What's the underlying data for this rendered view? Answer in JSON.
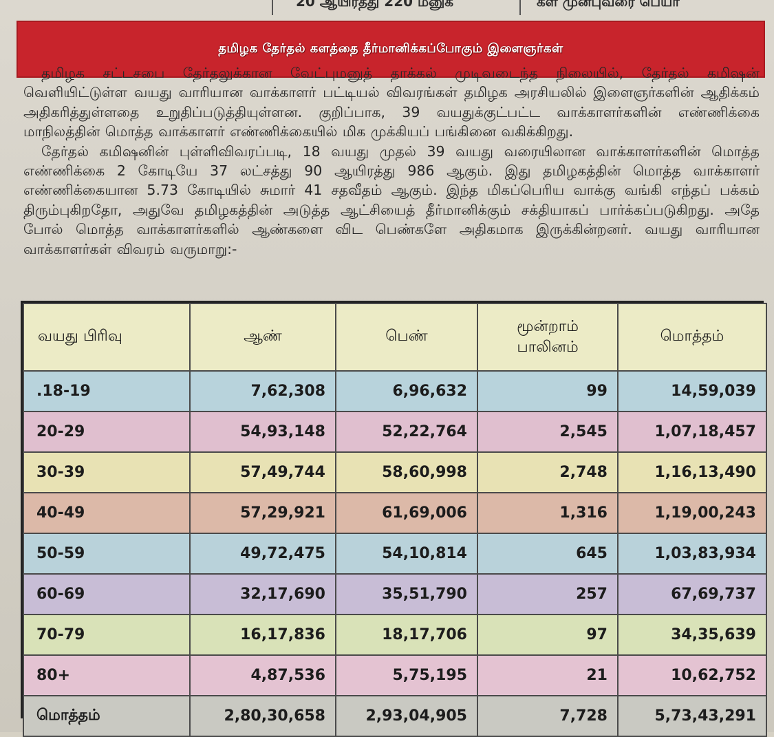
{
  "top_strip": {
    "left_fragment": "",
    "middle_fragment": "20 ஆயிரத்து 220 மனுக்",
    "right_fragment": "கள் முன்புவரை பெயர்"
  },
  "headline": "தமிழக தேர்தல் களத்தை தீர்மானிக்கப்போகும் இளைஞர்கள்",
  "paragraphs": [
    "தமிழக சட்டசபை தேர்தலுக்கான வேட்புமனுத் தாக்கல் முடிவடைந்த நிலையில், தேர்தல் கமிஷன் வெளியிட்டுள்ள வயது வாரியான வாக்காளர் பட்டியல் விவரங்கள் தமிழக அரசியலில் இளைஞர்களின் ஆதிக்கம் அதிகரித்துள்ளதை உறுதிப்படுத்தியுள்ளன. குறிப்பாக, 39 வயதுக்குட்பட்ட வாக்காளர்களின் எண்ணிக்கை மாநிலத்தின் மொத்த வாக்காளர் எண்ணிக்கையில் மிக முக்கியப் பங்கினை வகிக்கிறது.",
    "தேர்தல் கமிஷனின் புள்ளிவிவரப்படி, 18 வயது முதல் 39 வயது வரையிலான வாக்காளர்களின் மொத்த எண்ணிக்கை 2 கோடியே 37 லட்சத்து 90 ஆயிரத்து 986 ஆகும். இது தமிழகத்தின் மொத்த வாக்காளர் எண்ணிக்கையான 5.73 கோடியில் சுமார் 41 சதவீதம் ஆகும். இந்த மிகப்பெரிய வாக்கு வங்கி எந்தப் பக்கம் திரும்புகிறதோ, அதுவே தமிழகத்தின் அடுத்த ஆட்சியைத் தீர்மானிக்கும் சக்தியாகப் பார்க்கப்படுகிறது. அதே போல் மொத்த வாக்காளர்களில் ஆண்களை விட பெண்களே அதிகமாக இருக்கின்றனர். வயது வாரியான வாக்காளர்கள் விவரம் வருமாறு:-"
  ],
  "table": {
    "headers": {
      "age_group": "வயது பிரிவு",
      "male": "ஆண்",
      "female": "பெண்",
      "third_gender_line1": "மூன்றாம்",
      "third_gender_line2": "பாலினம்",
      "total": "மொத்தம்"
    },
    "rows": [
      {
        "age": ".18-19",
        "male": "7,62,308",
        "female": "6,96,632",
        "third": "99",
        "total": "14,59,039",
        "color": "#b8d3dc"
      },
      {
        "age": "20-29",
        "male": "54,93,148",
        "female": "52,22,764",
        "third": "2,545",
        "total": "1,07,18,457",
        "color": "#e0bfcf"
      },
      {
        "age": "30-39",
        "male": "57,49,744",
        "female": "58,60,998",
        "third": "2,748",
        "total": "1,16,13,490",
        "color": "#e8e2b4"
      },
      {
        "age": "40-49",
        "male": "57,29,921",
        "female": "61,69,006",
        "third": "1,316",
        "total": "1,19,00,243",
        "color": "#dcb9a8"
      },
      {
        "age": "50-59",
        "male": "49,72,475",
        "female": "54,10,814",
        "third": "645",
        "total": "1,03,83,934",
        "color": "#b9d2da"
      },
      {
        "age": "60-69",
        "male": "32,17,690",
        "female": "35,51,790",
        "third": "257",
        "total": "67,69,737",
        "color": "#c8bdd6"
      },
      {
        "age": "70-79",
        "male": "16,17,836",
        "female": "18,17,706",
        "third": "97",
        "total": "34,35,639",
        "color": "#d9e2b8"
      },
      {
        "age": "80+",
        "male": "4,87,536",
        "female": "5,75,195",
        "third": "21",
        "total": "10,62,752",
        "color": "#e4c3d2"
      },
      {
        "age": "மொத்தம்",
        "male": "2,80,30,658",
        "female": "2,93,04,905",
        "third": "7,728",
        "total": "5,73,43,291",
        "color": "#c9c9c2"
      }
    ]
  },
  "colors": {
    "headline_bg": "#c8242c",
    "header_row_bg": "#ecebc6"
  }
}
